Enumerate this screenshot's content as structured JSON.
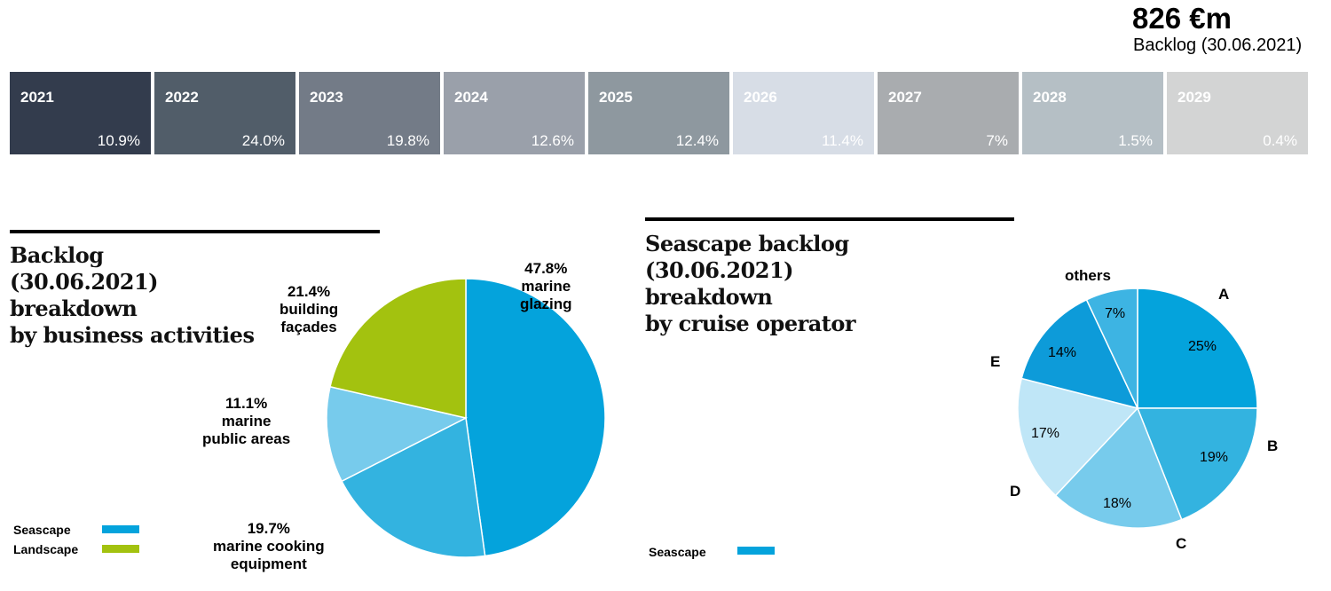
{
  "header": {
    "total_value": "826 €m",
    "total_label": "Backlog (30.06.2021)"
  },
  "colors": {
    "seascape": "#04a3dc",
    "landscape": "#a3c20f",
    "pie1": [
      "#04a3dc",
      "#33b3e0",
      "#77cbec",
      "#a3c20f"
    ],
    "pie2": [
      "#04a3dc",
      "#33b3e0",
      "#77cbec",
      "#bfe6f7",
      "#0d9bd9",
      "#3db4e3"
    ],
    "years": [
      "#333c4d",
      "#515d69",
      "#737b87",
      "#9aa0aa",
      "#8e989f",
      "#d7dde6",
      "#a9acaf",
      "#b5bfc5",
      "#d3d4d4"
    ]
  },
  "chart_data": [
    {
      "type": "bar",
      "subtype": "stacked-horizontal-100",
      "categories": [
        "2021",
        "2022",
        "2023",
        "2024",
        "2025",
        "2026",
        "2027",
        "2028",
        "2029"
      ],
      "value_labels": [
        "10.9%",
        "24.0%",
        "19.8%",
        "12.6%",
        "12.4%",
        "11.4%",
        "7%",
        "1.5%",
        "0.4%"
      ],
      "values": [
        10.9,
        24.0,
        19.8,
        12.6,
        12.4,
        11.4,
        7,
        1.5,
        0.4
      ]
    },
    {
      "type": "pie",
      "title": "Backlog\n(30.06.2021)\nbreakdown\nby business activities",
      "slices": [
        {
          "pct": "47.8%",
          "label": "marine\nglazing",
          "value": 47.8
        },
        {
          "pct": "19.7%",
          "label": "marine cooking\nequipment",
          "value": 19.7
        },
        {
          "pct": "11.1%",
          "label": "marine\npublic areas",
          "value": 11.1
        },
        {
          "pct": "21.4%",
          "label": "building\nfaçades",
          "value": 21.4
        }
      ],
      "legend": [
        "Seascape",
        "Landscape"
      ]
    },
    {
      "type": "pie",
      "title": "Seascape backlog\n(30.06.2021)\nbreakdown\nby cruise operator",
      "slices": [
        {
          "label": "A",
          "pct": "25%",
          "value": 25
        },
        {
          "label": "B",
          "pct": "19%",
          "value": 19
        },
        {
          "label": "C",
          "pct": "18%",
          "value": 18
        },
        {
          "label": "D",
          "pct": "17%",
          "value": 17
        },
        {
          "label": "E",
          "pct": "14%",
          "value": 14
        },
        {
          "label": "others",
          "pct": "7%",
          "value": 7
        }
      ],
      "legend": [
        "Seascape"
      ]
    }
  ]
}
